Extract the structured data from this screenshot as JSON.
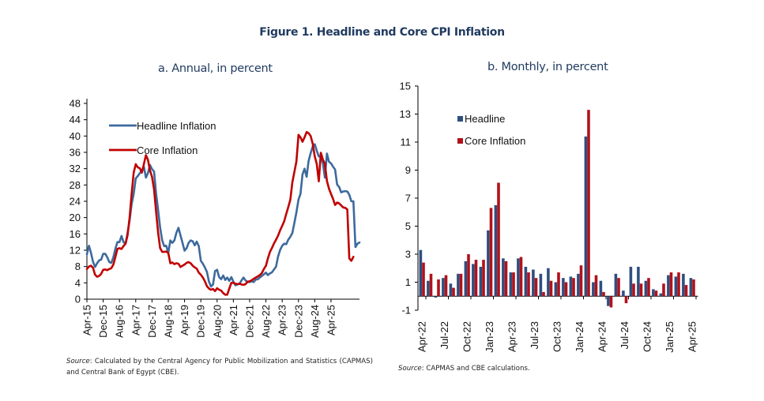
{
  "figure": {
    "title": "Figure 1. Headline and Core CPI Inflation"
  },
  "chart_data": [
    {
      "type": "line",
      "title": "a. Annual, in percent",
      "xlabel": "",
      "ylabel": "",
      "ylim": [
        0,
        48
      ],
      "yticks": [
        "0",
        "4",
        "8",
        "12",
        "16",
        "20",
        "24",
        "28",
        "32",
        "36",
        "40",
        "44",
        "48"
      ],
      "xticks": [
        "Apr-15",
        "Dec-15",
        "Aug-16",
        "Apr-17",
        "Dec-17",
        "Aug-18",
        "Apr-19",
        "Dec-19",
        "Aug-20",
        "Apr-21",
        "Dec-21",
        "Aug-22",
        "Apr-23",
        "Dec-23",
        "Aug-24",
        "Apr-25"
      ],
      "x_start": "Apr-15",
      "x_end": "Apr-25",
      "frequency": "monthly",
      "legend_position": "top-left",
      "grid": false,
      "series": [
        {
          "name": "Headline Inflation",
          "color": "#3d6a9c",
          "values": [
            11.0,
            13.1,
            11.4,
            9.2,
            7.9,
            8.8,
            9.5,
            9.7,
            11.1,
            11.1,
            10.3,
            9.1,
            8.9,
            10.3,
            12.3,
            14.0,
            14.0,
            15.5,
            14.0,
            13.6,
            16.3,
            19.4,
            23.3,
            25.8,
            29.6,
            30.2,
            30.9,
            31.5,
            32.5,
            29.8,
            30.9,
            32.9,
            31.9,
            31.3,
            26.0,
            21.9,
            17.5,
            14.4,
            13.0,
            13.1,
            11.4,
            14.4,
            13.8,
            14.4,
            16.3,
            17.5,
            15.7,
            13.8,
            11.9,
            12.5,
            13.8,
            14.4,
            14.2,
            13.2,
            14.1,
            13.0,
            9.4,
            8.7,
            7.8,
            6.7,
            4.3,
            3.1,
            3.6,
            6.9,
            7.2,
            5.4,
            4.9,
            5.8,
            4.7,
            5.3,
            4.5,
            5.4,
            4.3,
            3.4,
            3.6,
            3.8,
            4.6,
            5.3,
            4.6,
            4.2,
            4.2,
            4.4,
            4.2,
            4.8,
            4.9,
            5.3,
            5.7,
            6.1,
            6.5,
            5.9,
            6.3,
            6.6,
            7.3,
            8.0,
            10.5,
            12.1,
            13.1,
            13.6,
            13.5,
            14.6,
            15.3,
            16.2,
            18.7,
            21.3,
            24.4,
            25.8,
            30.6,
            32.0,
            30.0,
            33.9,
            35.8,
            37.4,
            38.0,
            36.4,
            35.0,
            35.0,
            33.3,
            29.8,
            35.7,
            33.7,
            33.3,
            32.5,
            31.8,
            28.1,
            27.5,
            26.2,
            26.4,
            26.5,
            26.4,
            25.6,
            24.0,
            24.0,
            12.8,
            13.6,
            13.9
          ],
          "values_note": "approximate readings from chart"
        },
        {
          "name": "Core Inflation",
          "color": "#c00000",
          "values": [
            7.4,
            8.0,
            8.2,
            7.7,
            6.0,
            5.5,
            5.7,
            6.2,
            7.2,
            7.3,
            7.1,
            7.4,
            7.6,
            8.5,
            10.3,
            12.3,
            12.5,
            12.3,
            13.0,
            13.6,
            15.7,
            20.1,
            25.8,
            31.0,
            33.1,
            32.3,
            32.1,
            31.0,
            33.1,
            35.3,
            34.2,
            31.6,
            30.0,
            26.9,
            21.6,
            16.4,
            12.5,
            11.6,
            11.6,
            11.7,
            11.3,
            8.8,
            9.0,
            8.6,
            8.8,
            8.7,
            7.9,
            8.2,
            8.5,
            8.9,
            9.1,
            8.8,
            8.2,
            7.8,
            7.5,
            6.5,
            6.0,
            5.3,
            4.4,
            3.2,
            2.6,
            2.3,
            2.5,
            2.0,
            2.7,
            2.3,
            2.1,
            1.5,
            1.1,
            1.1,
            2.6,
            4.0,
            4.0,
            3.8,
            3.7,
            3.8,
            3.6,
            3.5,
            3.7,
            4.3,
            4.4,
            4.6,
            5.0,
            5.3,
            5.6,
            5.9,
            6.4,
            7.4,
            8.2,
            10.0,
            11.6,
            12.6,
            13.7,
            14.6,
            15.6,
            16.9,
            18.0,
            19.1,
            20.9,
            22.6,
            24.4,
            28.6,
            31.2,
            33.8,
            40.3,
            39.7,
            38.6,
            39.7,
            41.0,
            40.7,
            40.0,
            38.1,
            35.0,
            33.2,
            28.9,
            35.9,
            34.2,
            33.2,
            29.0,
            27.1,
            25.8,
            24.6,
            23.1,
            23.7,
            23.5,
            23.0,
            22.5,
            22.4,
            22.0,
            10.0,
            9.4,
            10.4
          ],
          "values_note": "approximate readings from chart"
        }
      ]
    },
    {
      "type": "bar",
      "title": "b. Monthly, in percent",
      "xlabel": "",
      "ylabel": "",
      "ylim": [
        -1,
        15
      ],
      "yticks": [
        "-1",
        "1",
        "3",
        "5",
        "7",
        "9",
        "11",
        "13",
        "15"
      ],
      "categories": [
        "Apr-22",
        "May-22",
        "Jun-22",
        "Jul-22",
        "Aug-22",
        "Sep-22",
        "Oct-22",
        "Nov-22",
        "Dec-22",
        "Jan-23",
        "Feb-23",
        "Mar-23",
        "Apr-23",
        "May-23",
        "Jun-23",
        "Jul-23",
        "Aug-23",
        "Sep-23",
        "Oct-23",
        "Nov-23",
        "Dec-23",
        "Jan-24",
        "Feb-24",
        "Mar-24",
        "Apr-24",
        "May-24",
        "Jun-24",
        "Jul-24",
        "Aug-24",
        "Sep-24",
        "Oct-24",
        "Nov-24",
        "Dec-24",
        "Jan-25",
        "Feb-25",
        "Mar-25",
        "Apr-25"
      ],
      "xticks": [
        "Apr-22",
        "Jul-22",
        "Oct-22",
        "Jan-23",
        "Apr-23",
        "Jul-23",
        "Oct-23",
        "Jan-24",
        "Apr-24",
        "Jul-24",
        "Oct-24",
        "Jan-25",
        "Apr-25"
      ],
      "legend_position": "top-left",
      "grid": false,
      "series": [
        {
          "name": "Headline",
          "color": "#2f4f7f",
          "values": [
            3.3,
            1.1,
            -0.1,
            1.3,
            0.9,
            1.6,
            2.5,
            2.3,
            2.1,
            4.7,
            6.5,
            2.7,
            1.7,
            2.7,
            2.1,
            1.9,
            1.6,
            2.0,
            1.0,
            1.3,
            1.4,
            1.6,
            11.4,
            1.0,
            1.1,
            -0.7,
            1.6,
            0.4,
            2.1,
            2.1,
            1.1,
            0.5,
            0.2,
            1.5,
            1.4,
            1.6,
            1.3
          ]
        },
        {
          "name": "Core Inflation",
          "color": "#b0121b",
          "values": [
            2.4,
            1.6,
            1.2,
            1.5,
            0.6,
            1.6,
            3.0,
            2.6,
            2.6,
            6.3,
            8.1,
            2.5,
            1.7,
            2.8,
            1.7,
            1.3,
            0.3,
            1.1,
            1.7,
            1.0,
            1.3,
            2.2,
            13.3,
            1.5,
            0.3,
            -0.8,
            1.3,
            -0.5,
            0.9,
            0.9,
            1.3,
            0.4,
            0.9,
            1.7,
            1.7,
            0.8,
            1.2
          ]
        }
      ]
    }
  ],
  "sources": {
    "a_label": "Source",
    "a_text": ": Calculated by the Central Agency for Public Mobilization and Statistics (CAPMAS) and Central Bank of Egypt (CBE).",
    "b_label": "Source",
    "b_text": ": CAPMAS and CBE calculations."
  }
}
